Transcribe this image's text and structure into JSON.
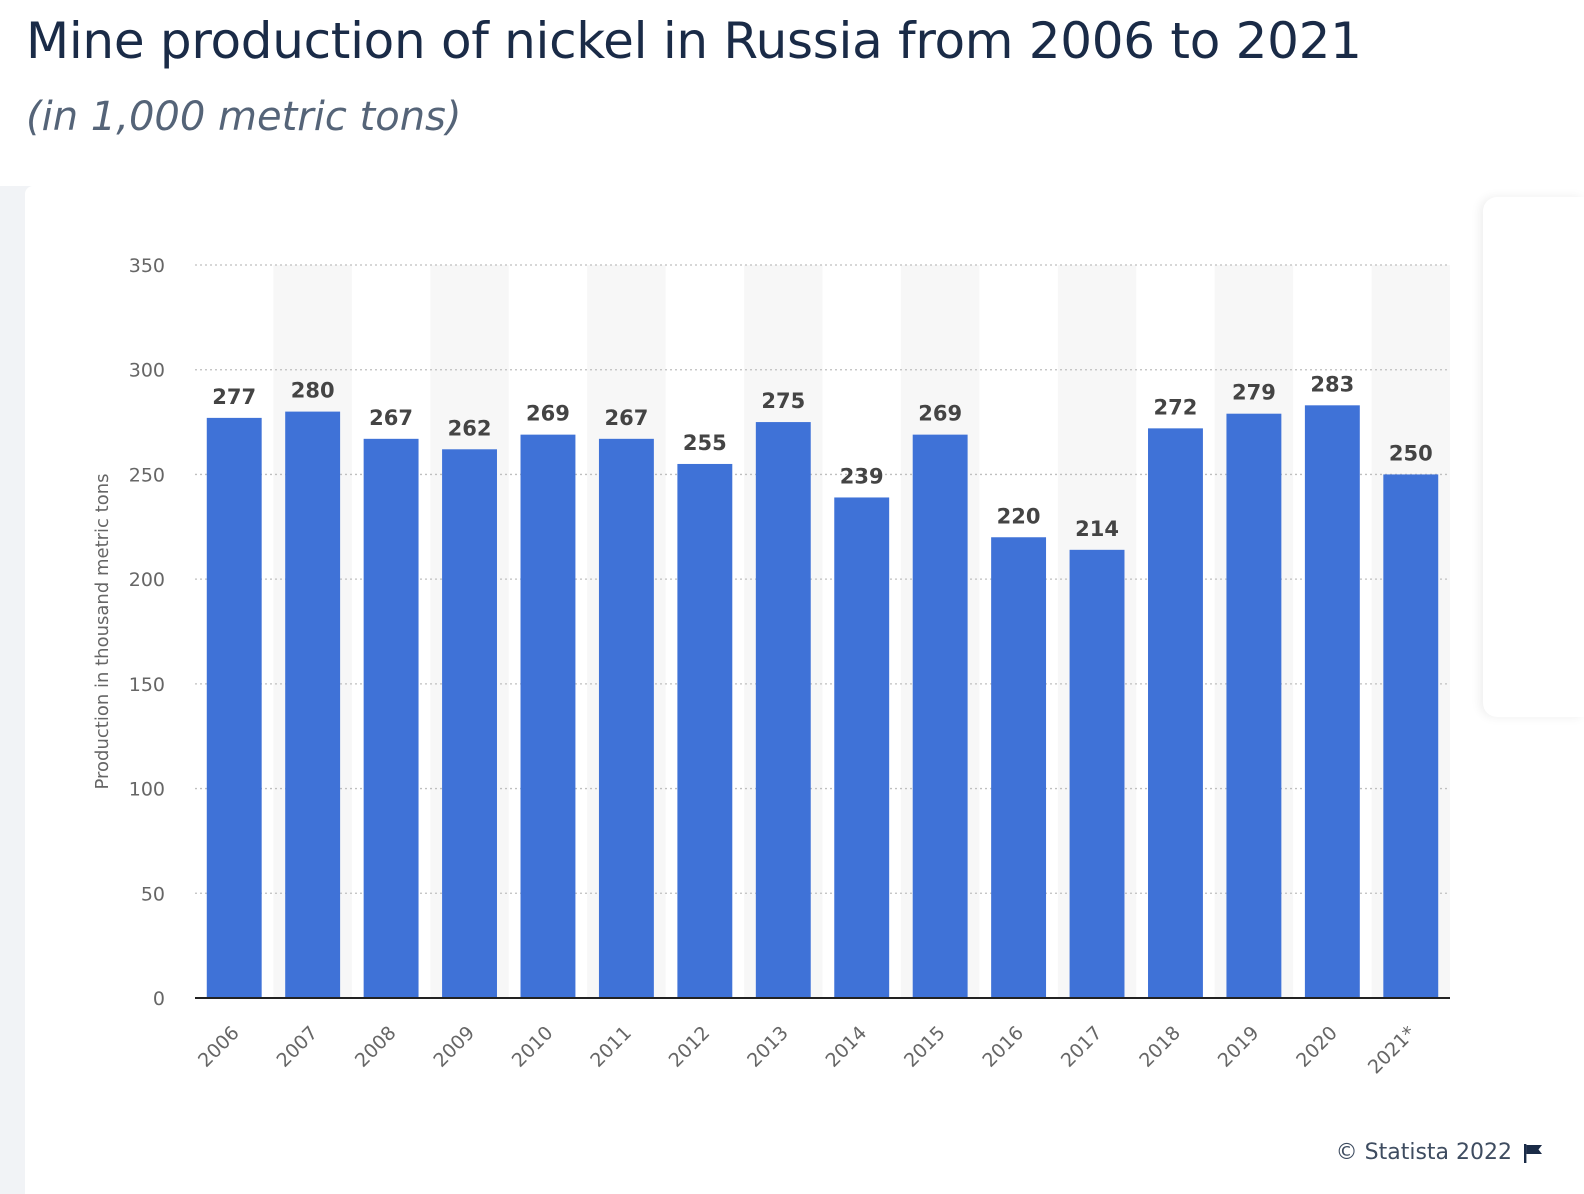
{
  "header": {
    "title": "Mine production of nickel in Russia from 2006 to 2021",
    "subtitle": "(in 1,000 metric tons)"
  },
  "footer": {
    "credit": "© Statista 2022",
    "flag_icon": "flag-icon"
  },
  "colors": {
    "bar": "#3f72d7",
    "band": "#f7f7f7",
    "grid": "#bfbfbf",
    "axis": "#222222",
    "tick_text": "#666666",
    "label_text": "#444444"
  },
  "chart_data": {
    "type": "bar",
    "categories": [
      "2006",
      "2007",
      "2008",
      "2009",
      "2010",
      "2011",
      "2012",
      "2013",
      "2014",
      "2015",
      "2016",
      "2017",
      "2018",
      "2019",
      "2020",
      "2021*"
    ],
    "values": [
      277,
      280,
      267,
      262,
      269,
      267,
      255,
      275,
      239,
      269,
      220,
      214,
      272,
      279,
      283,
      250
    ],
    "value_labels": [
      "277",
      "280",
      "267",
      "262",
      "269",
      "267",
      "255",
      "275",
      "239",
      "269",
      "220",
      "214",
      "272",
      "279",
      "283",
      "250"
    ],
    "ylabel": "Production in thousand metric tons",
    "xlabel": "",
    "ylim": [
      0,
      350
    ],
    "yticks": [
      "0",
      "50",
      "100",
      "150",
      "200",
      "250",
      "300",
      "350"
    ],
    "grid": true,
    "legend": "none"
  }
}
